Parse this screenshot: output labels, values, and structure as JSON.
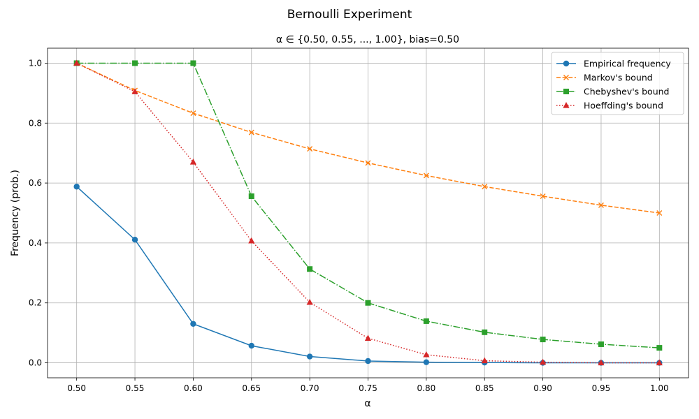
{
  "chart_data": {
    "type": "line",
    "suptitle": "Bernoulli Experiment",
    "title": "α ∈ {0.50, 0.55, ..., 1.00}, bias=0.50",
    "xlabel": "α",
    "ylabel": "Frequency (prob.)",
    "x": [
      0.5,
      0.55,
      0.6,
      0.65,
      0.7,
      0.75,
      0.8,
      0.85,
      0.9,
      0.95,
      1.0
    ],
    "xlim": [
      0.475,
      1.025
    ],
    "ylim": [
      -0.05,
      1.05
    ],
    "xticks": [
      "0.50",
      "0.55",
      "0.60",
      "0.65",
      "0.70",
      "0.75",
      "0.80",
      "0.85",
      "0.90",
      "0.95",
      "1.00"
    ],
    "yticks": [
      "0.0",
      "0.2",
      "0.4",
      "0.6",
      "0.8",
      "1.0"
    ],
    "ytick_values": [
      0.0,
      0.2,
      0.4,
      0.6,
      0.8,
      1.0
    ],
    "grid": true,
    "legend_position": "top-right",
    "series": [
      {
        "name": "Empirical frequency",
        "color": "#1f77b4",
        "dash": "solid",
        "marker": "circle",
        "values": [
          0.588,
          0.411,
          0.13,
          0.057,
          0.021,
          0.006,
          0.002,
          0.001,
          0.0,
          0.0,
          0.0
        ]
      },
      {
        "name": "Markov's bound",
        "color": "#ff7f0e",
        "dash": "dashed",
        "marker": "x",
        "values": [
          1.0,
          0.909,
          0.833,
          0.769,
          0.714,
          0.667,
          0.625,
          0.588,
          0.556,
          0.526,
          0.5
        ]
      },
      {
        "name": "Chebyshev's bound",
        "color": "#2ca02c",
        "dash": "dashdot",
        "marker": "square",
        "values": [
          1.0,
          1.0,
          1.0,
          0.556,
          0.313,
          0.2,
          0.139,
          0.102,
          0.078,
          0.062,
          0.05
        ]
      },
      {
        "name": "Hoeffding's bound",
        "color": "#d62728",
        "dash": "dotted",
        "marker": "triangle",
        "values": [
          1.0,
          0.905,
          0.67,
          0.407,
          0.202,
          0.082,
          0.027,
          0.007,
          0.002,
          0.0,
          0.0
        ]
      }
    ]
  }
}
